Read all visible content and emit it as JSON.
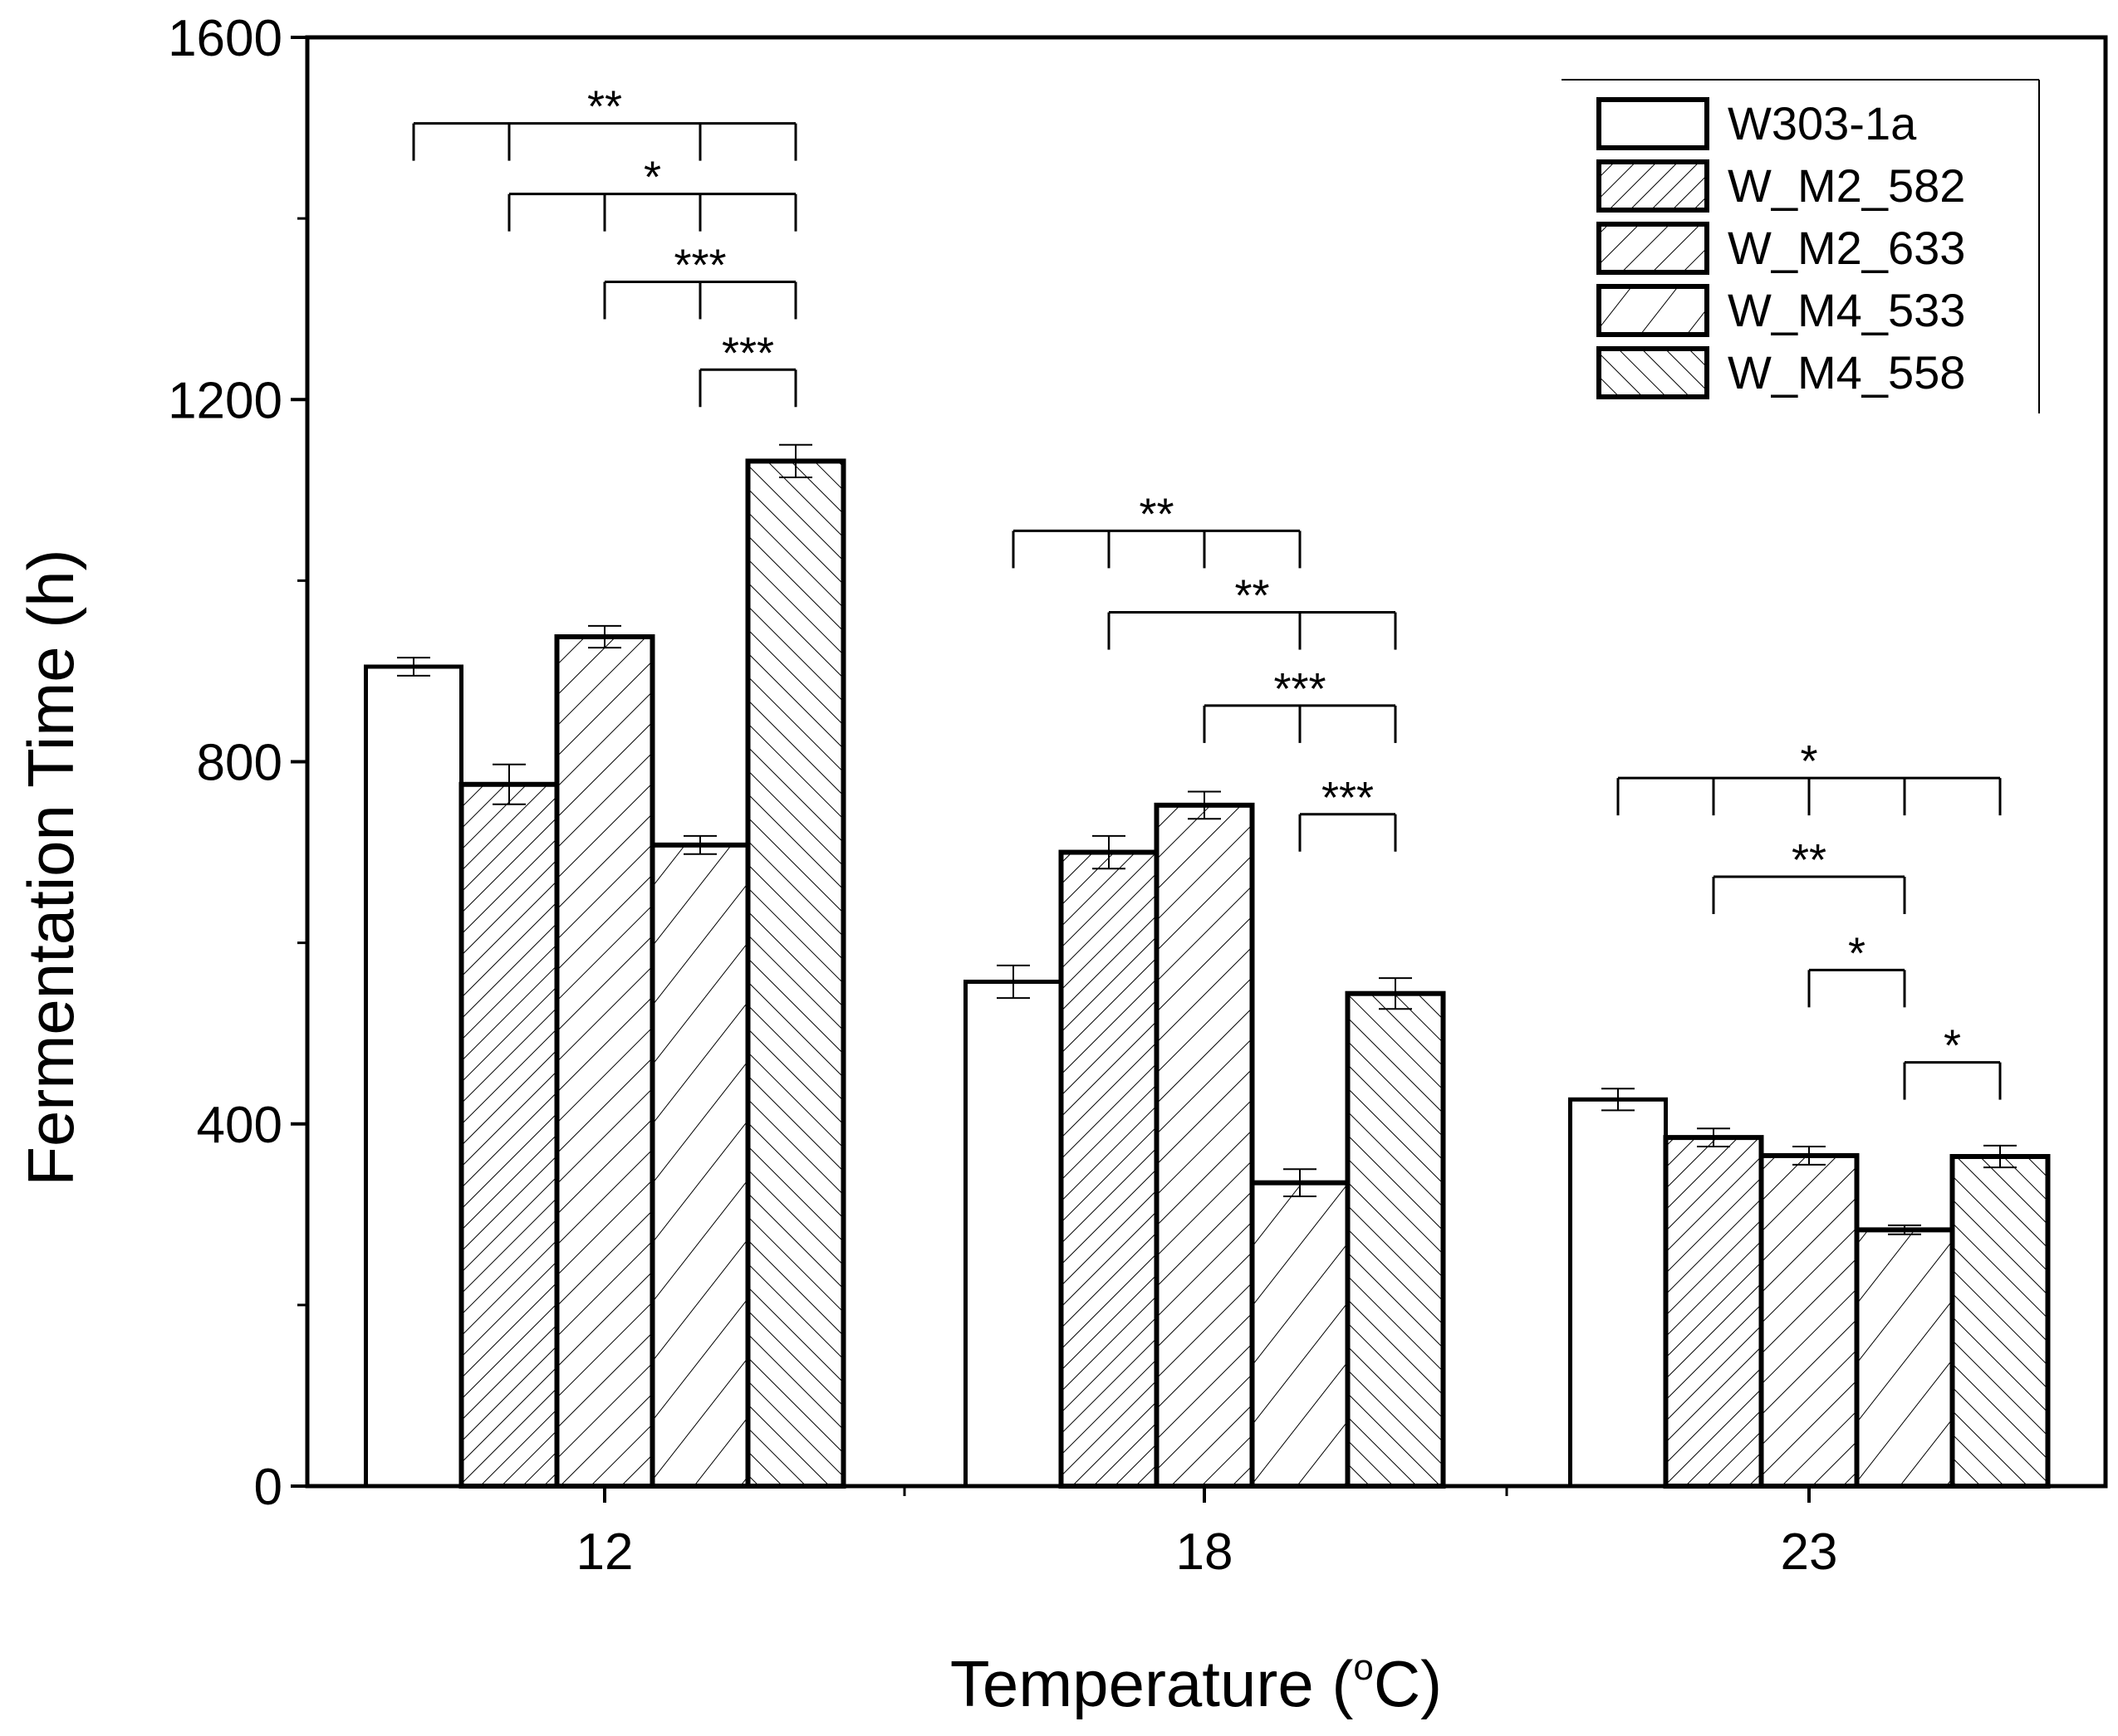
{
  "chart_data": {
    "type": "bar",
    "xlabel_main": "Temperature (",
    "xlabel_sup": "o",
    "xlabel_tail": "C)",
    "ylabel": "Fermentation Time (h)",
    "ylim": [
      0,
      1600
    ],
    "yticks": [
      "0",
      "400",
      "800",
      "1200",
      "1600"
    ],
    "categories": [
      "12",
      "18",
      "23"
    ],
    "series": [
      {
        "name": "W303-1a",
        "pattern": "none",
        "values": [
          905,
          557,
          427
        ],
        "errors": [
          10,
          18,
          12
        ]
      },
      {
        "name": "W_M2_582",
        "pattern": "hatch-dense",
        "values": [
          775,
          700,
          385
        ],
        "errors": [
          22,
          18,
          10
        ]
      },
      {
        "name": "W_M2_633",
        "pattern": "hatch-forward",
        "values": [
          938,
          752,
          365
        ],
        "errors": [
          12,
          15,
          10
        ]
      },
      {
        "name": "W_M4_533",
        "pattern": "hatch-sparse",
        "values": [
          708,
          335,
          283
        ],
        "errors": [
          10,
          15,
          5
        ]
      },
      {
        "name": "W_M4_558",
        "pattern": "hatch-back",
        "values": [
          1132,
          544,
          364
        ],
        "errors": [
          18,
          17,
          12
        ]
      }
    ],
    "significance": [
      {
        "group": 0,
        "from": 0,
        "to": 4,
        "ticks": [
          1,
          3
        ],
        "y": 1505,
        "label": "**"
      },
      {
        "group": 0,
        "from": 1,
        "to": 4,
        "ticks": [
          2,
          3
        ],
        "y": 1427,
        "label": "*"
      },
      {
        "group": 0,
        "from": 2,
        "to": 4,
        "ticks": [
          3
        ],
        "y": 1330,
        "label": "***"
      },
      {
        "group": 0,
        "from": 3,
        "to": 4,
        "ticks": [],
        "y": 1233,
        "label": "***"
      },
      {
        "group": 1,
        "from": 0,
        "to": 3,
        "ticks": [
          1,
          2
        ],
        "y": 1055,
        "label": "**"
      },
      {
        "group": 1,
        "from": 1,
        "to": 4,
        "ticks": [
          3
        ],
        "y": 965,
        "label": "**"
      },
      {
        "group": 1,
        "from": 2,
        "to": 4,
        "ticks": [
          3
        ],
        "y": 862,
        "label": "***"
      },
      {
        "group": 1,
        "from": 3,
        "to": 4,
        "ticks": [],
        "y": 742,
        "label": "***"
      },
      {
        "group": 2,
        "from": 0,
        "to": 4,
        "ticks": [
          1,
          2,
          3
        ],
        "y": 782,
        "label": "*"
      },
      {
        "group": 2,
        "from": 1,
        "to": 3,
        "ticks": [],
        "y": 673,
        "label": "**"
      },
      {
        "group": 2,
        "from": 2,
        "to": 3,
        "ticks": [],
        "y": 570,
        "label": "*"
      },
      {
        "group": 2,
        "from": 3,
        "to": 4,
        "ticks": [],
        "y": 468,
        "label": "*"
      }
    ],
    "legend_position": "top-right",
    "grid": false
  }
}
